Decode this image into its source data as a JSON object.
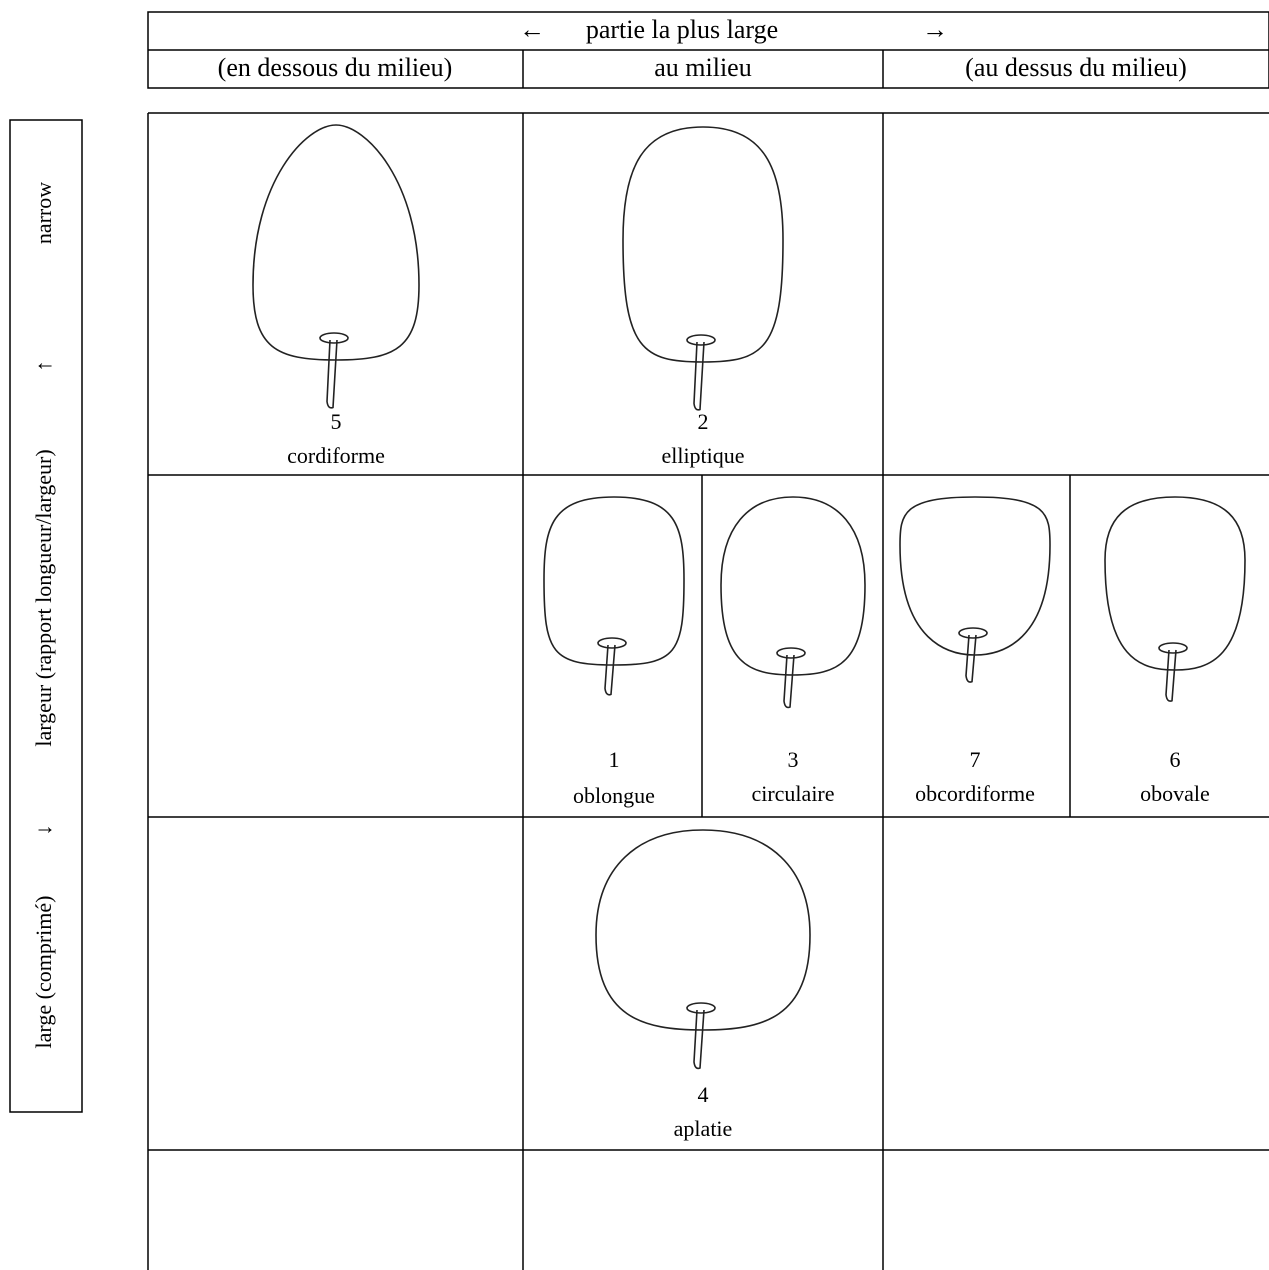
{
  "header": {
    "arrow_left": "←",
    "title": "partie la plus large",
    "arrow_right": "→",
    "columns": [
      "(en dessous du milieu)",
      "au milieu",
      "(au dessus du milieu)"
    ]
  },
  "side_axis": {
    "top": "narrow",
    "arrow_up": "↑",
    "label": "largeur (rapport longueur/largeur)",
    "arrow_down": "↓",
    "bottom": "large (comprimé)"
  },
  "shapes": [
    {
      "number": 5,
      "label": "cordiforme"
    },
    {
      "number": 2,
      "label": "elliptique"
    },
    {
      "number": 1,
      "label": "oblongue"
    },
    {
      "number": 3,
      "label": "circulaire"
    },
    {
      "number": 7,
      "label": "obcordiforme"
    },
    {
      "number": 6,
      "label": "obovale"
    },
    {
      "number": 4,
      "label": "aplatie"
    }
  ]
}
